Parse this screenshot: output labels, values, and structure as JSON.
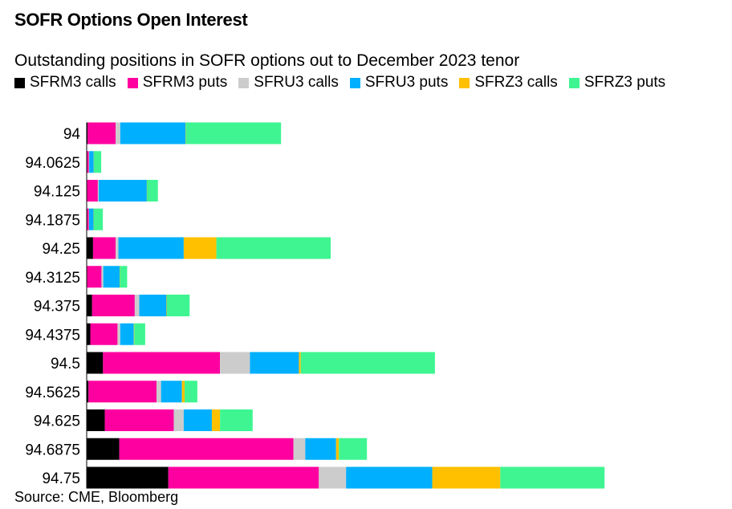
{
  "title": "SOFR Options Open Interest",
  "subtitle": "Outstanding positions in SOFR options out to December 2023 tenor",
  "source": "Source: CME, Bloomberg",
  "chart_data": {
    "type": "bar",
    "orientation": "horizontal",
    "stacked": true,
    "categories": [
      "94",
      "94.0625",
      "94.125",
      "94.1875",
      "94.25",
      "94.3125",
      "94.375",
      "94.4375",
      "94.5",
      "94.5625",
      "94.625",
      "94.6875",
      "94.75"
    ],
    "series": [
      {
        "name": "SFRM3 calls",
        "color": "#000000",
        "values": [
          1,
          0.4,
          0.3,
          0.3,
          7,
          0.3,
          6,
          4,
          18,
          2,
          20,
          36,
          90
        ]
      },
      {
        "name": "SFRM3 puts",
        "color": "#ff00a0",
        "values": [
          31,
          2,
          12,
          2,
          25,
          16,
          47,
          30,
          129,
          75,
          76,
          192,
          166
        ]
      },
      {
        "name": "SFRU3 calls",
        "color": "#cccccc",
        "values": [
          5,
          0.4,
          1,
          0.3,
          3,
          2,
          5,
          3,
          33,
          5,
          11,
          13,
          30
        ]
      },
      {
        "name": "SFRU3 puts",
        "color": "#00b0ff",
        "values": [
          72,
          5,
          53,
          5,
          72,
          18,
          30,
          15,
          54,
          23,
          31,
          34,
          95
        ]
      },
      {
        "name": "SFRZ3 calls",
        "color": "#ffc000",
        "values": [
          0.3,
          0.2,
          0.2,
          0.2,
          36,
          0.3,
          0.5,
          0.5,
          2,
          3,
          9,
          3,
          75
        ]
      },
      {
        "name": "SFRZ3 puts",
        "color": "#3ef591",
        "values": [
          105,
          8,
          12,
          10,
          126,
          8,
          25,
          12,
          148,
          14,
          36,
          31,
          115
        ]
      }
    ],
    "xlim": [
      0,
      700
    ],
    "grid": false,
    "legend_position": "top"
  }
}
